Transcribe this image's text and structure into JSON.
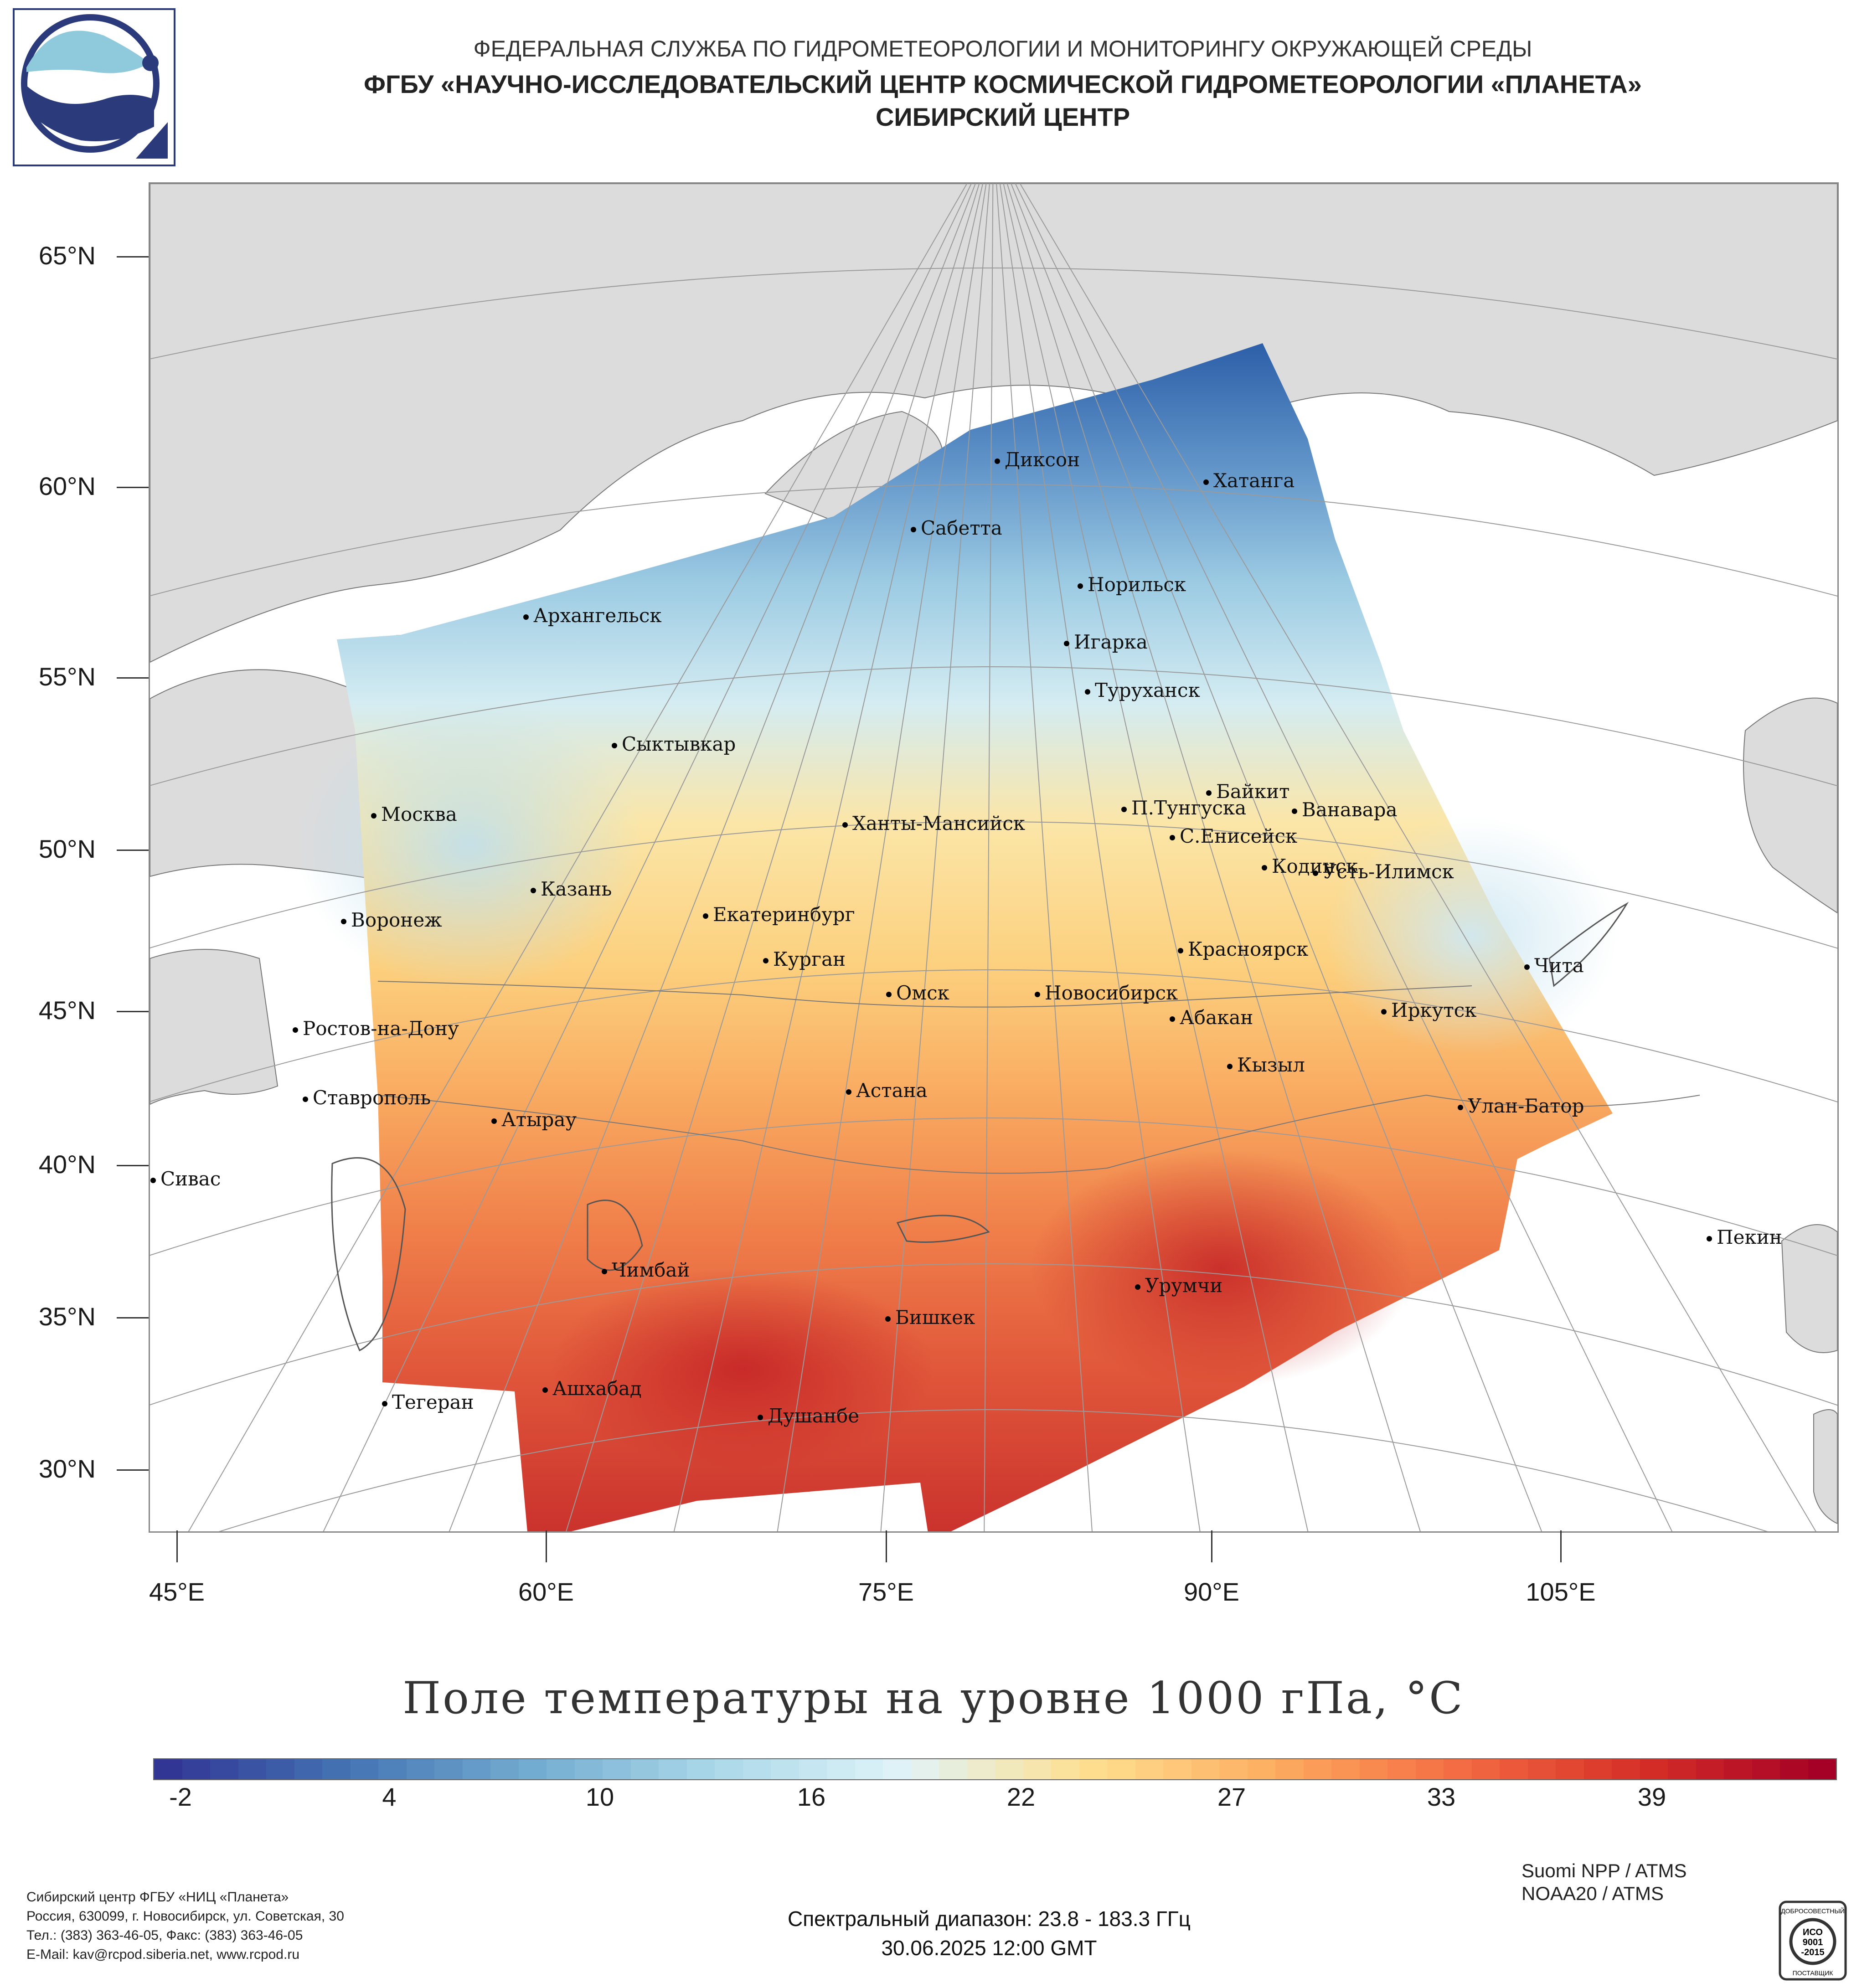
{
  "header": {
    "line1": "ФЕДЕРАЛЬНАЯ СЛУЖБА ПО ГИДРОМЕТЕОРОЛОГИИ И МОНИТОРИНГУ ОКРУЖАЮЩЕЙ СРЕДЫ",
    "line2": "ФГБУ «НАУЧНО-ИССЛЕДОВАТЕЛЬСКИЙ ЦЕНТР КОСМИЧЕСКОЙ ГИДРОМЕТЕОРОЛОГИИ «ПЛАНЕТА»",
    "line3": "СИБИРСКИЙ ЦЕНТР"
  },
  "map": {
    "lat_labels": [
      "65°N",
      "60°N",
      "55°N",
      "50°N",
      "45°N",
      "40°N",
      "35°N",
      "30°N"
    ],
    "lon_labels": [
      "45°E",
      "60°E",
      "75°E",
      "90°E",
      "105°E"
    ],
    "cities": [
      "Диксон",
      "Хатанга",
      "Сабетта",
      "Норильск",
      "Архангельск",
      "Игарка",
      "Туруханск",
      "Сыктывкар",
      "Байкит",
      "П.Тунгуска",
      "Ванавара",
      "Москва",
      "Ханты-Мансийск",
      "С.Енисейск",
      "Кодинск",
      "Усть-Илимск",
      "Казань",
      "Екатеринбург",
      "Воронеж",
      "Красноярск",
      "Курган",
      "Чита",
      "Омск",
      "Новосибирск",
      "Иркутск",
      "Ростов-на-Дону",
      "Абакан",
      "Кызыл",
      "Ставрополь",
      "Астана",
      "Улан-Батор",
      "Атырау",
      "Сивас",
      "Пекин",
      "Чимбай",
      "Урумчи",
      "Бишкек",
      "Ашхабад",
      "Тегеран",
      "Душанбе"
    ]
  },
  "chart_title": "Поле температуры на уровне 1000 гПа, °C",
  "colorbar": {
    "tick_labels": [
      "-2",
      "4",
      "10",
      "16",
      "22",
      "27",
      "33",
      "39"
    ],
    "colors": [
      "#313695",
      "#4575b4",
      "#74add1",
      "#abd9e9",
      "#e0f3f8",
      "#fee090",
      "#fdae61",
      "#f46d43",
      "#d73027",
      "#a50026"
    ]
  },
  "footer": {
    "left_line1": "Сибирский центр ФГБУ «НИЦ «Планета»",
    "left_line2": "Россия, 630099, г. Новосибирск, ул. Советская, 30",
    "left_line3": "Тел.: (383) 363-46-05, Факс: (383) 363-46-05",
    "left_line4": "E-Mail: kav@rcpod.siberia.net, www.rcpod.ru",
    "center_line1": "Спектральный диапазон: 23.8 - 183.3 ГГц",
    "center_line2": "30.06.2025 12:00 GMT",
    "right_line1": "Suomi NPP / ATMS",
    "right_line2": "NOAA20 / ATMS",
    "iso_top": "ДОБРОСОВЕСТНЫЙ",
    "iso_mid1": "ИСО",
    "iso_mid2": "9001",
    "iso_mid3": "-2015",
    "iso_bottom": "ПОСТАВЩИК"
  }
}
